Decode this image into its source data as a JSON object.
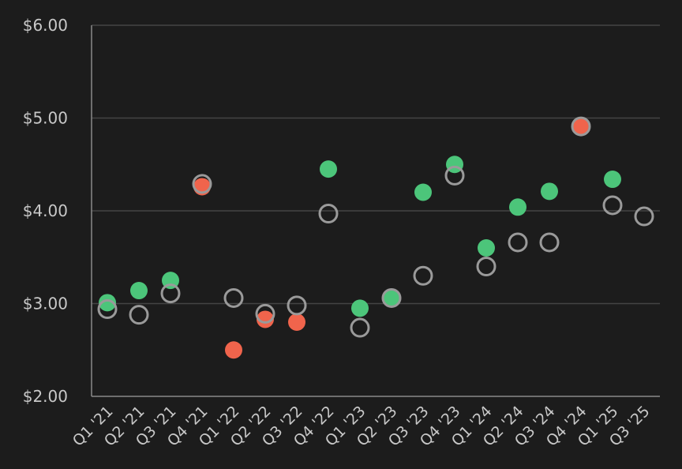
{
  "chart_data": {
    "type": "scatter",
    "categories": [
      "Q1 '21",
      "Q2 '21",
      "Q3 '21",
      "Q4 '21",
      "Q1 '22",
      "Q2 '22",
      "Q3 '22",
      "Q4 '22",
      "Q1 '23",
      "Q2 '23",
      "Q3 '23",
      "Q4 '23",
      "Q1 '24",
      "Q2 '24",
      "Q3 '24",
      "Q4 '24",
      "Q1 '25",
      "Q3 '25"
    ],
    "series": [
      {
        "role": "estimate",
        "style": "hollow-ring",
        "color": "#9a9a9a",
        "values": [
          2.94,
          2.88,
          3.11,
          4.29,
          3.06,
          2.89,
          2.98,
          3.97,
          2.74,
          3.06,
          3.3,
          4.38,
          3.4,
          3.66,
          3.66,
          4.91,
          4.06,
          3.94
        ]
      },
      {
        "role": "actual",
        "style": "filled",
        "values": [
          3.01,
          3.14,
          3.25,
          4.26,
          2.5,
          2.83,
          2.8,
          4.45,
          2.95,
          3.07,
          4.2,
          4.5,
          3.6,
          4.04,
          4.21,
          4.9,
          4.34,
          null
        ],
        "status": [
          "beat",
          "beat",
          "beat",
          "miss",
          "miss",
          "miss",
          "miss",
          "beat",
          "beat",
          "beat",
          "beat",
          "beat",
          "beat",
          "beat",
          "beat",
          "miss",
          "beat",
          null
        ]
      }
    ],
    "yticks": [
      "$2.00",
      "$3.00",
      "$4.00",
      "$5.00",
      "$6.00"
    ],
    "ytick_values": [
      2,
      3,
      4,
      5,
      6
    ],
    "ylim": [
      2,
      6
    ],
    "grid": true,
    "colors": {
      "beat": "#4cc57a",
      "miss": "#f0644c",
      "ring": "#9a9a9a",
      "grid": "#444444",
      "axis": "#8a8a8a",
      "background": "#1c1c1c"
    }
  }
}
